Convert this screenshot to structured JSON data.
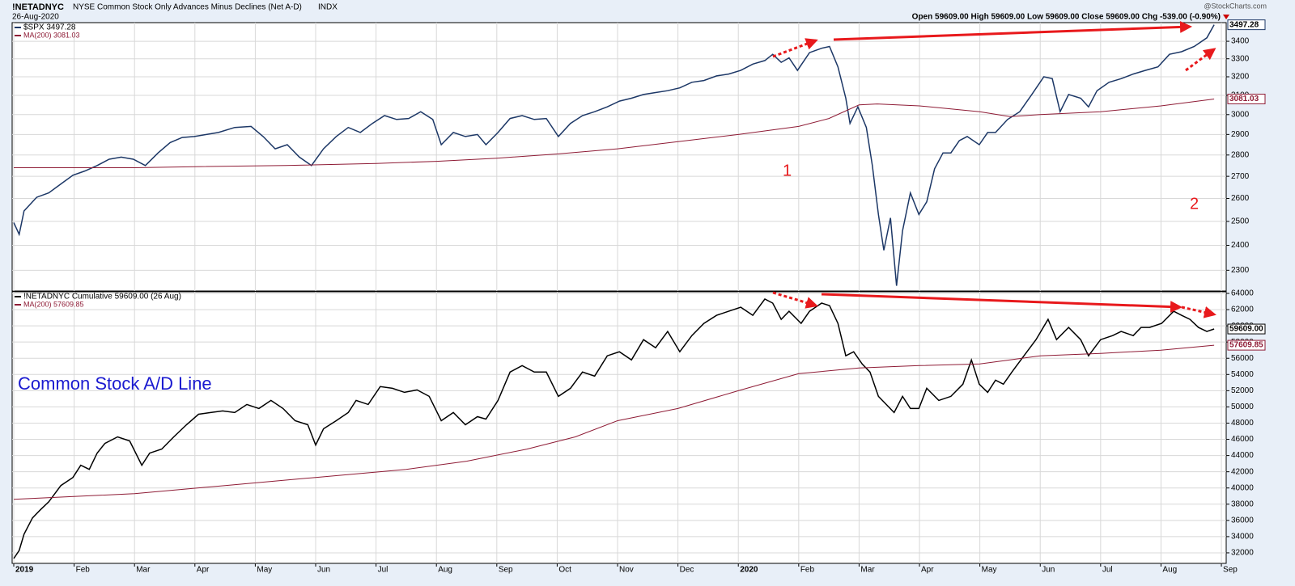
{
  "header": {
    "symbol": "!NETADNYC",
    "description": "NYSE Common Stock Only Advances Minus Declines (Net A-D)",
    "exchange": "INDX",
    "date": "26-Aug-2020",
    "source": "@StockCharts.com",
    "quote": "Open 59609.00 High 59609.00 Low 59609.00 Close 59609.00 Chg -539.00 (-0.90%)"
  },
  "chart_data": [
    {
      "type": "line",
      "log_scale": true,
      "grid": true,
      "xlim": [
        0,
        20.08
      ],
      "ylim": [
        2220,
        3510
      ],
      "yticks": [
        2300,
        2400,
        2500,
        2600,
        2700,
        2800,
        2900,
        3000,
        3100,
        3200,
        3300,
        3400
      ],
      "annotations": [
        "1",
        "2"
      ],
      "series": [
        {
          "name": "$SPX 3497.28",
          "color": "#1c3766",
          "last_value_label": "3497.28",
          "x": [
            0,
            0.09,
            0.17,
            0.38,
            0.58,
            0.78,
            0.98,
            1.18,
            1.38,
            1.58,
            1.78,
            1.98,
            2.18,
            2.39,
            2.59,
            2.79,
            2.99,
            3.19,
            3.39,
            3.66,
            3.93,
            4.13,
            4.33,
            4.53,
            4.73,
            4.93,
            5.13,
            5.34,
            5.54,
            5.74,
            5.94,
            6.14,
            6.34,
            6.54,
            6.74,
            6.94,
            7.08,
            7.28,
            7.48,
            7.68,
            7.82,
            8.02,
            8.22,
            8.42,
            8.62,
            8.82,
            9.02,
            9.22,
            9.42,
            9.62,
            9.83,
            10.03,
            10.23,
            10.43,
            10.63,
            10.83,
            11.03,
            11.23,
            11.43,
            11.64,
            11.84,
            12.04,
            12.24,
            12.44,
            12.57,
            12.71,
            12.84,
            12.98,
            13.18,
            13.38,
            13.51,
            13.65,
            13.78,
            13.85,
            13.98,
            14.12,
            14.22,
            14.32,
            14.41,
            14.52,
            14.62,
            14.72,
            14.85,
            14.99,
            15.12,
            15.25,
            15.39,
            15.52,
            15.66,
            15.79,
            15.99,
            16.13,
            16.26,
            16.46,
            16.66,
            16.86,
            17.06,
            17.2,
            17.33,
            17.47,
            17.67,
            17.8,
            17.94,
            18.14,
            18.34,
            18.54,
            18.74,
            18.95,
            19.14,
            19.34,
            19.55,
            19.76,
            19.88
          ],
          "values": [
            2495,
            2445,
            2545,
            2605,
            2625,
            2665,
            2705,
            2725,
            2750,
            2780,
            2790,
            2780,
            2750,
            2810,
            2860,
            2885,
            2890,
            2900,
            2910,
            2935,
            2940,
            2890,
            2830,
            2850,
            2790,
            2750,
            2830,
            2890,
            2935,
            2910,
            2955,
            2995,
            2975,
            2980,
            3015,
            2975,
            2850,
            2910,
            2890,
            2900,
            2850,
            2910,
            2980,
            2995,
            2975,
            2980,
            2890,
            2955,
            2995,
            3015,
            3040,
            3070,
            3085,
            3105,
            3115,
            3125,
            3140,
            3170,
            3180,
            3205,
            3215,
            3235,
            3270,
            3290,
            3325,
            3280,
            3305,
            3235,
            3335,
            3360,
            3370,
            3255,
            3085,
            2955,
            3040,
            2935,
            2750,
            2530,
            2380,
            2515,
            2240,
            2460,
            2625,
            2530,
            2585,
            2735,
            2810,
            2810,
            2870,
            2890,
            2850,
            2910,
            2910,
            2975,
            3015,
            3105,
            3200,
            3190,
            3015,
            3105,
            3085,
            3040,
            3125,
            3170,
            3190,
            3215,
            3235,
            3255,
            3325,
            3340,
            3370,
            3420,
            3497.28
          ]
        },
        {
          "name": "MA(200) 3081.03",
          "color": "#8e1b35",
          "last_value_label": "3081.03",
          "x": [
            0,
            2,
            3,
            4.5,
            6,
            7,
            8,
            9,
            10,
            11,
            12,
            13,
            13.5,
            14,
            14.3,
            15,
            16,
            16.5,
            17,
            18,
            19,
            19.88
          ],
          "values": [
            2740,
            2740,
            2745,
            2750,
            2760,
            2770,
            2785,
            2805,
            2830,
            2865,
            2900,
            2940,
            2980,
            3050,
            3055,
            3045,
            3015,
            2990,
            3000,
            3015,
            3045,
            3081.03
          ]
        }
      ]
    },
    {
      "type": "line",
      "log_scale": false,
      "grid": true,
      "xlim": [
        0,
        20.08
      ],
      "ylim": [
        30700,
        64200
      ],
      "yticks": [
        32000,
        34000,
        36000,
        38000,
        40000,
        42000,
        44000,
        46000,
        48000,
        50000,
        52000,
        54000,
        56000,
        58000,
        60000,
        62000,
        64000
      ],
      "xticks": [
        {
          "value": 0,
          "label": "2019"
        },
        {
          "value": 1,
          "label": "Feb"
        },
        {
          "value": 2,
          "label": "Mar"
        },
        {
          "value": 3,
          "label": "Apr"
        },
        {
          "value": 4,
          "label": "May"
        },
        {
          "value": 5,
          "label": "Jun"
        },
        {
          "value": 6,
          "label": "Jul"
        },
        {
          "value": 7,
          "label": "Aug"
        },
        {
          "value": 8,
          "label": "Sep"
        },
        {
          "value": 9,
          "label": "Oct"
        },
        {
          "value": 10,
          "label": "Nov"
        },
        {
          "value": 11,
          "label": "Dec"
        },
        {
          "value": 12,
          "label": "2020"
        },
        {
          "value": 13,
          "label": "Feb"
        },
        {
          "value": 14,
          "label": "Mar"
        },
        {
          "value": 15,
          "label": "Apr"
        },
        {
          "value": 16,
          "label": "May"
        },
        {
          "value": 17,
          "label": "Jun"
        },
        {
          "value": 18,
          "label": "Jul"
        },
        {
          "value": 19,
          "label": "Aug"
        },
        {
          "value": 20,
          "label": "Sep"
        }
      ],
      "annotations": [
        "Common Stock A/D Line"
      ],
      "series": [
        {
          "name": "!NETADNYC Cumulative 59609.00 (26 Aug)",
          "color": "#000000",
          "last_value_label": "59609.00",
          "x": [
            0,
            0.09,
            0.17,
            0.31,
            0.44,
            0.58,
            0.78,
            0.98,
            1.11,
            1.25,
            1.38,
            1.51,
            1.72,
            1.92,
            2.12,
            2.25,
            2.45,
            2.65,
            2.86,
            3.06,
            3.26,
            3.46,
            3.66,
            3.86,
            4.06,
            4.26,
            4.46,
            4.66,
            4.87,
            5,
            5.13,
            5.34,
            5.54,
            5.67,
            5.87,
            6.07,
            6.27,
            6.47,
            6.68,
            6.88,
            7.08,
            7.28,
            7.48,
            7.68,
            7.82,
            8.02,
            8.22,
            8.42,
            8.62,
            8.82,
            9.02,
            9.22,
            9.42,
            9.62,
            9.83,
            10.03,
            10.23,
            10.43,
            10.63,
            10.83,
            11.03,
            11.23,
            11.43,
            11.64,
            11.84,
            12.04,
            12.24,
            12.44,
            12.57,
            12.71,
            12.84,
            13.04,
            13.18,
            13.38,
            13.51,
            13.65,
            13.78,
            13.91,
            14.05,
            14.18,
            14.32,
            14.45,
            14.58,
            14.72,
            14.85,
            14.99,
            15.12,
            15.32,
            15.52,
            15.72,
            15.86,
            15.99,
            16.13,
            16.26,
            16.39,
            16.53,
            16.73,
            16.93,
            17.13,
            17.27,
            17.47,
            17.67,
            17.8,
            18,
            18.2,
            18.34,
            18.54,
            18.67,
            18.81,
            19.01,
            19.21,
            19.34,
            19.48,
            19.62,
            19.76,
            19.88
          ],
          "values": [
            31300,
            32300,
            34300,
            36300,
            37300,
            38300,
            40300,
            41300,
            42800,
            42300,
            44300,
            45500,
            46300,
            45800,
            42800,
            44300,
            44800,
            46300,
            47800,
            49100,
            49300,
            49500,
            49300,
            50300,
            49800,
            50800,
            49800,
            48300,
            47800,
            45300,
            47300,
            48300,
            49300,
            50800,
            50300,
            52500,
            52300,
            51800,
            52100,
            51300,
            48300,
            49300,
            47800,
            48800,
            48500,
            50800,
            54300,
            55100,
            54300,
            54300,
            51300,
            52300,
            54300,
            53800,
            56300,
            56800,
            55800,
            58300,
            57300,
            59300,
            56800,
            58800,
            60300,
            61300,
            61800,
            62300,
            61300,
            63300,
            62800,
            60800,
            61800,
            60300,
            61800,
            62800,
            62500,
            60300,
            56300,
            56800,
            55300,
            54300,
            51300,
            50300,
            49300,
            51300,
            49800,
            49800,
            52300,
            50800,
            51300,
            52800,
            55800,
            52800,
            51800,
            53300,
            52800,
            54300,
            56300,
            58300,
            60800,
            58300,
            59800,
            58300,
            56300,
            58300,
            58800,
            59300,
            58800,
            59800,
            59800,
            60300,
            61800,
            61300,
            60800,
            59800,
            59300,
            59609
          ]
        },
        {
          "name": "MA(200) 57609.85",
          "color": "#8e1b35",
          "last_value_label": "57609.85",
          "x": [
            0,
            2,
            3.5,
            5,
            6.5,
            7.5,
            8.5,
            9.3,
            10,
            11,
            12,
            13,
            14,
            15,
            16,
            16.5,
            17,
            18,
            19,
            19.88
          ],
          "values": [
            38600,
            39300,
            40300,
            41300,
            42300,
            43300,
            44800,
            46300,
            48300,
            49800,
            52000,
            54100,
            54800,
            55100,
            55300,
            55800,
            56300,
            56600,
            57000,
            57609.85
          ]
        }
      ]
    }
  ]
}
